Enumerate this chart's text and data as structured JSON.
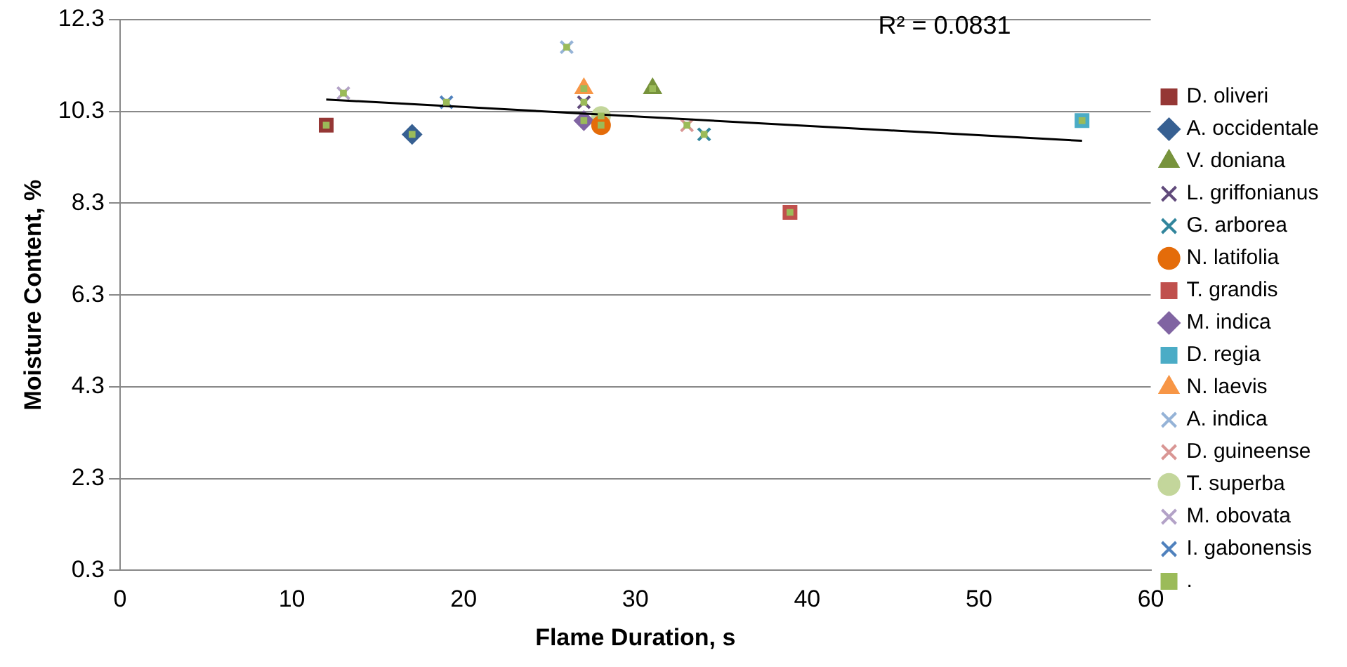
{
  "chart_data": {
    "type": "scatter",
    "xlabel": "Flame Duration, s",
    "ylabel": "Moisture Content, %",
    "xlim": [
      0,
      60
    ],
    "xticks": [
      0,
      10,
      20,
      30,
      40,
      50,
      60
    ],
    "ylim": [
      0.3,
      12.3
    ],
    "yticks": [
      0.3,
      2.3,
      4.3,
      6.3,
      8.3,
      10.3,
      12.3
    ],
    "grid": "y",
    "legend": "right",
    "annotations": [
      "R² = 0.0831"
    ],
    "series": [
      {
        "name": "D. oliveri",
        "color": "#953735",
        "marker": "square",
        "x": [
          12
        ],
        "values": [
          10.0
        ]
      },
      {
        "name": "A. occidentale",
        "color": "#376092",
        "marker": "diamond",
        "x": [
          17
        ],
        "values": [
          9.8
        ]
      },
      {
        "name": "V. doniana",
        "color": "#77933c",
        "marker": "triangle",
        "x": [
          31
        ],
        "values": [
          10.8
        ]
      },
      {
        "name": "L. griffonianus",
        "color": "#604a7b",
        "marker": "cross",
        "x": [
          27
        ],
        "values": [
          10.5
        ]
      },
      {
        "name": "G. arborea",
        "color": "#31859c",
        "marker": "cross",
        "x": [
          34
        ],
        "values": [
          9.8
        ]
      },
      {
        "name": "N. latifolia",
        "color": "#e46c0a",
        "marker": "circle",
        "x": [
          28
        ],
        "values": [
          10.0
        ]
      },
      {
        "name": "T. grandis",
        "color": "#c0504d",
        "marker": "square",
        "x": [
          39
        ],
        "values": [
          8.1
        ]
      },
      {
        "name": "M. indica",
        "color": "#8064a2",
        "marker": "diamond",
        "x": [
          27
        ],
        "values": [
          10.1
        ]
      },
      {
        "name": "D. regia",
        "color": "#4bacc6",
        "marker": "square",
        "x": [
          56
        ],
        "values": [
          10.1
        ]
      },
      {
        "name": "N. laevis",
        "color": "#f79646",
        "marker": "triangle",
        "x": [
          27
        ],
        "values": [
          10.8
        ]
      },
      {
        "name": "A. indica",
        "color": "#95b3d7",
        "marker": "cross",
        "x": [
          26
        ],
        "values": [
          11.7
        ]
      },
      {
        "name": "D. guineense",
        "color": "#d99694",
        "marker": "cross",
        "x": [
          33
        ],
        "values": [
          10.0
        ]
      },
      {
        "name": "T. superba",
        "color": "#c3d69b",
        "marker": "circle",
        "x": [
          28
        ],
        "values": [
          10.2
        ]
      },
      {
        "name": "M. obovata",
        "color": "#b3a2c7",
        "marker": "cross",
        "x": [
          13
        ],
        "values": [
          10.7
        ]
      },
      {
        "name": "I. gabonensis",
        "color": "#4f81bd",
        "marker": "cross",
        "x": [
          19
        ],
        "values": [
          10.5
        ]
      },
      {
        "name": ".",
        "color": "#9bbb59",
        "marker": "square",
        "x": [
          12,
          17,
          31,
          27,
          34,
          28,
          39,
          27,
          56,
          27,
          26,
          33,
          28,
          13,
          19
        ],
        "values": [
          10.0,
          9.8,
          10.8,
          10.5,
          9.8,
          10.0,
          8.1,
          10.1,
          10.1,
          10.8,
          11.7,
          10.0,
          10.2,
          10.7,
          10.5
        ]
      },
      {
        "type": "line",
        "color": "#000000",
        "marker": "none",
        "x": [
          12,
          56
        ],
        "values": [
          10.56,
          9.66
        ]
      }
    ]
  }
}
